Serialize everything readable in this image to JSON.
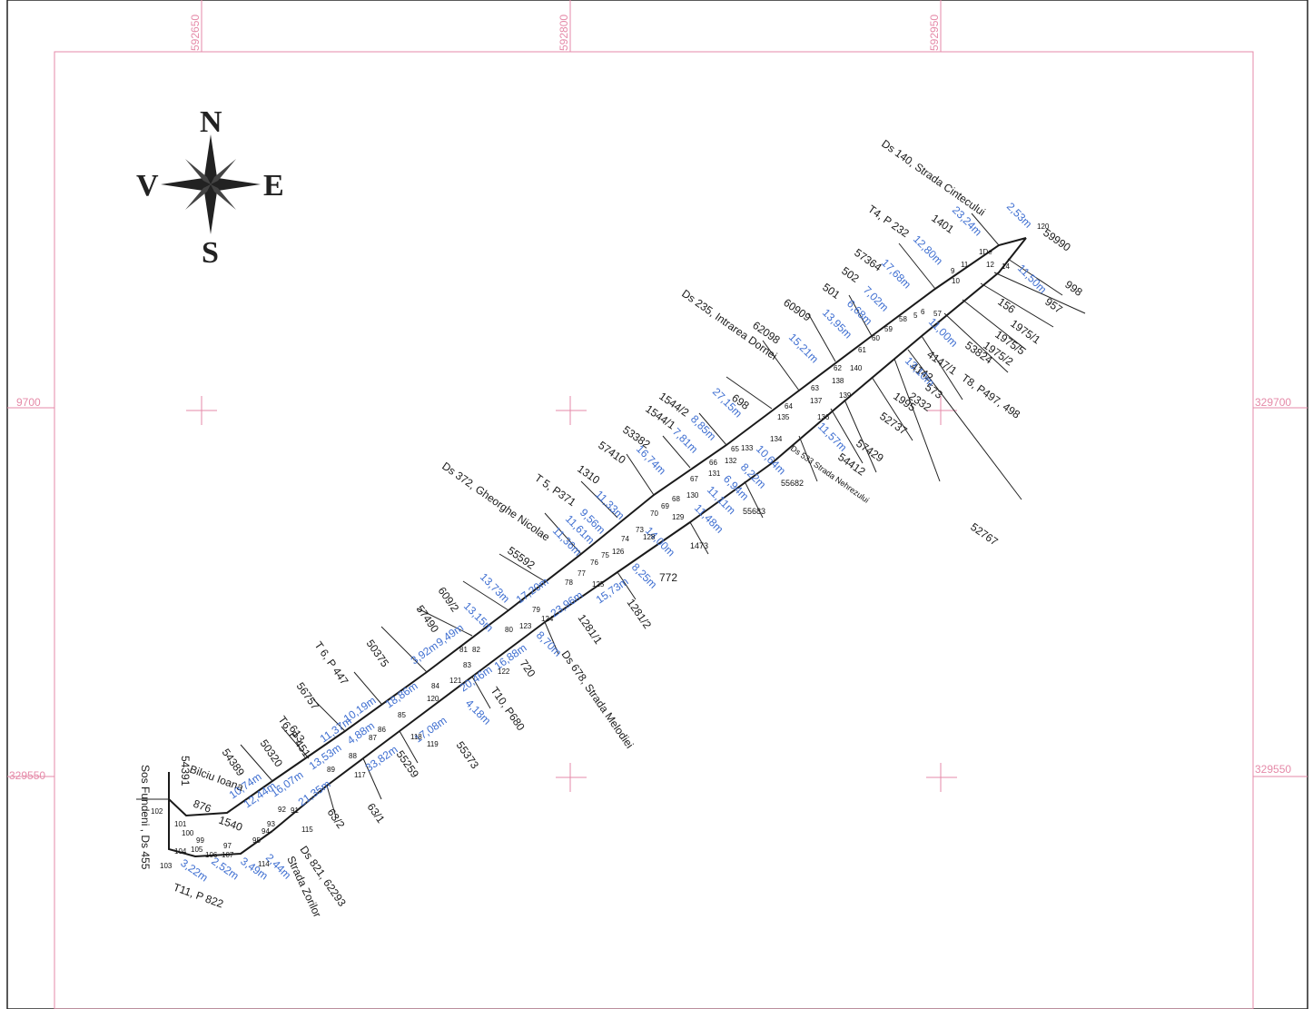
{
  "colors": {
    "grid": "#e58aa8",
    "dimension": "#3f6fd1",
    "boundary": "#1a1a1a",
    "label": "#1a1a1a"
  },
  "compass": {
    "north": "N",
    "south": "S",
    "east": "E",
    "west": "V"
  },
  "grid_labels": {
    "x1": "592650",
    "x2": "592800",
    "x3": "592950",
    "y_left_top": "9700",
    "y_right_top": "329700",
    "y_left_bottom": "329550",
    "y_right_bottom": "329550"
  },
  "road_labels": {
    "ds140": "Ds 140, Strada Cintecului",
    "ds235": "Ds 235, Intrarea Dornei",
    "ds372": "Ds 372, Gheorghe Nicolae",
    "ds533": "Ds 533 Strada Nehrezului",
    "ds678": "Ds 678, Strada Melodiei",
    "ds821": "Ds 821, 62293",
    "zorilor": "Strada Zorilor",
    "sos": "Sos Fundeni , Ds 455",
    "bicu": "Bilciu Ioana"
  },
  "parcel_labels": [
    {
      "id": "t4",
      "text": "T4, P 232"
    },
    {
      "id": "p1401",
      "text": "1401"
    },
    {
      "id": "p59990",
      "text": "59990"
    },
    {
      "id": "p998",
      "text": "998"
    },
    {
      "id": "p957",
      "text": "957"
    },
    {
      "id": "p156",
      "text": "156"
    },
    {
      "id": "p1975_1",
      "text": "1975/1"
    },
    {
      "id": "p1975_5",
      "text": "1975/5"
    },
    {
      "id": "p1975_2",
      "text": "1975/2"
    },
    {
      "id": "p53824",
      "text": "53824"
    },
    {
      "id": "t8",
      "text": "T8, P497, 498"
    },
    {
      "id": "p4147",
      "text": "4147/1"
    },
    {
      "id": "p4142",
      "text": "4142"
    },
    {
      "id": "p573",
      "text": "573"
    },
    {
      "id": "p2332",
      "text": "2332"
    },
    {
      "id": "p1995",
      "text": "1995"
    },
    {
      "id": "p52737",
      "text": "52737"
    },
    {
      "id": "p57429",
      "text": "57429"
    },
    {
      "id": "p54412",
      "text": "54412"
    },
    {
      "id": "p52767",
      "text": "52767"
    },
    {
      "id": "p57364",
      "text": "57364"
    },
    {
      "id": "p502",
      "text": "502"
    },
    {
      "id": "p501",
      "text": "501"
    },
    {
      "id": "p60909",
      "text": "60909"
    },
    {
      "id": "p62098",
      "text": "62098"
    },
    {
      "id": "p698",
      "text": "698"
    },
    {
      "id": "p1544_2",
      "text": "1544/2"
    },
    {
      "id": "p1544_1",
      "text": "1544/1"
    },
    {
      "id": "p53382",
      "text": "53382"
    },
    {
      "id": "p57410",
      "text": "57410"
    },
    {
      "id": "p1310",
      "text": "1310"
    },
    {
      "id": "t5",
      "text": "T 5, P371"
    },
    {
      "id": "p55592",
      "text": "55592"
    },
    {
      "id": "p55682",
      "text": "55682"
    },
    {
      "id": "p55683",
      "text": "55683"
    },
    {
      "id": "p1473",
      "text": "1473"
    },
    {
      "id": "p772",
      "text": "772"
    },
    {
      "id": "p1281_2",
      "text": "1281/2"
    },
    {
      "id": "p1281_1",
      "text": "1281/1"
    },
    {
      "id": "p720",
      "text": "720"
    },
    {
      "id": "t10",
      "text": "T10, P680"
    },
    {
      "id": "p609_2",
      "text": "609/2"
    },
    {
      "id": "p57490",
      "text": "57490"
    },
    {
      "id": "p50375",
      "text": "50375"
    },
    {
      "id": "t6a",
      "text": "T 6, P 447"
    },
    {
      "id": "p56757",
      "text": "56757"
    },
    {
      "id": "p613",
      "text": "613"
    },
    {
      "id": "t6b",
      "text": "T6, P 451"
    },
    {
      "id": "p50320",
      "text": "50320"
    },
    {
      "id": "p54389",
      "text": "54389"
    },
    {
      "id": "p54391",
      "text": "54391"
    },
    {
      "id": "p55373",
      "text": "55373"
    },
    {
      "id": "p55259",
      "text": "55259"
    },
    {
      "id": "p63_1",
      "text": "63/1"
    },
    {
      "id": "p63_2",
      "text": "63/2"
    },
    {
      "id": "p876",
      "text": "876"
    },
    {
      "id": "p1540",
      "text": "1540"
    },
    {
      "id": "t11",
      "text": "T11, P 822"
    }
  ],
  "dimension_labels": [
    {
      "id": "d1",
      "text": "2,53m"
    },
    {
      "id": "d2",
      "text": "23,24m"
    },
    {
      "id": "d3",
      "text": "11,50m"
    },
    {
      "id": "d4",
      "text": "12,80m"
    },
    {
      "id": "d5",
      "text": "17,68m"
    },
    {
      "id": "d6",
      "text": "7,02m"
    },
    {
      "id": "d7",
      "text": "6,68m"
    },
    {
      "id": "d8",
      "text": "13,95m"
    },
    {
      "id": "d9",
      "text": "15,21m"
    },
    {
      "id": "d10",
      "text": "11,00m"
    },
    {
      "id": "d11",
      "text": "13,10m"
    },
    {
      "id": "d12",
      "text": "27,15m"
    },
    {
      "id": "d13",
      "text": "8,85m"
    },
    {
      "id": "d14",
      "text": "7,81m"
    },
    {
      "id": "d15",
      "text": "16,74m"
    },
    {
      "id": "d16",
      "text": "10,64m"
    },
    {
      "id": "d17",
      "text": "8,22m"
    },
    {
      "id": "d18",
      "text": "6,94m"
    },
    {
      "id": "d19",
      "text": "11,57m"
    },
    {
      "id": "d20",
      "text": "11,11m"
    },
    {
      "id": "d21",
      "text": "11,48m"
    },
    {
      "id": "d22",
      "text": "14,00m"
    },
    {
      "id": "d23",
      "text": "11,33m"
    },
    {
      "id": "d24",
      "text": "9,56m"
    },
    {
      "id": "d25",
      "text": "11,61m"
    },
    {
      "id": "d26",
      "text": "11,36m"
    },
    {
      "id": "d27",
      "text": "17,20m"
    },
    {
      "id": "d28",
      "text": "23,96m"
    },
    {
      "id": "d29",
      "text": "15,73m"
    },
    {
      "id": "d30",
      "text": "8,25m"
    },
    {
      "id": "d31",
      "text": "13,73m"
    },
    {
      "id": "d32",
      "text": "13,15m"
    },
    {
      "id": "d33",
      "text": "9,49m"
    },
    {
      "id": "d34",
      "text": "3,92m"
    },
    {
      "id": "d35",
      "text": "16,88m"
    },
    {
      "id": "d36",
      "text": "8,70m"
    },
    {
      "id": "d37",
      "text": "20,46m"
    },
    {
      "id": "d38",
      "text": "18,86m"
    },
    {
      "id": "d39",
      "text": "10,19m"
    },
    {
      "id": "d40",
      "text": "11,37m"
    },
    {
      "id": "d41",
      "text": "4,88m"
    },
    {
      "id": "d42",
      "text": "17,08m"
    },
    {
      "id": "d43",
      "text": "4,18m"
    },
    {
      "id": "d44",
      "text": "13,53m"
    },
    {
      "id": "d45",
      "text": "33,82m"
    },
    {
      "id": "d46",
      "text": "16,07m"
    },
    {
      "id": "d47",
      "text": "21,35m"
    },
    {
      "id": "d48",
      "text": "12,44m"
    },
    {
      "id": "d49",
      "text": "10,74m"
    },
    {
      "id": "d50",
      "text": "3,49m"
    },
    {
      "id": "d51",
      "text": "2,44m"
    },
    {
      "id": "d52",
      "text": "2,52m"
    },
    {
      "id": "d53",
      "text": "3,22m"
    }
  ],
  "vertex_labels": [
    {
      "id": "v1",
      "text": "120"
    },
    {
      "id": "v2",
      "text": "1De"
    },
    {
      "id": "v3",
      "text": "14"
    },
    {
      "id": "v4",
      "text": "9"
    },
    {
      "id": "v5",
      "text": "10"
    },
    {
      "id": "v6",
      "text": "58"
    },
    {
      "id": "v7",
      "text": "59"
    },
    {
      "id": "v8",
      "text": "60"
    },
    {
      "id": "v9",
      "text": "61"
    },
    {
      "id": "v10",
      "text": "62"
    },
    {
      "id": "v11",
      "text": "63"
    },
    {
      "id": "v12",
      "text": "64"
    },
    {
      "id": "v13",
      "text": "65"
    },
    {
      "id": "v14",
      "text": "66"
    },
    {
      "id": "v15",
      "text": "67"
    },
    {
      "id": "v16",
      "text": "68"
    },
    {
      "id": "v17",
      "text": "69"
    },
    {
      "id": "v18",
      "text": "70"
    },
    {
      "id": "v19",
      "text": "73"
    },
    {
      "id": "v20",
      "text": "74"
    },
    {
      "id": "v21",
      "text": "75"
    },
    {
      "id": "v22",
      "text": "76"
    },
    {
      "id": "v23",
      "text": "77"
    },
    {
      "id": "v24",
      "text": "78"
    },
    {
      "id": "v25",
      "text": "79"
    },
    {
      "id": "v26",
      "text": "80"
    },
    {
      "id": "v27",
      "text": "81"
    },
    {
      "id": "v28",
      "text": "82"
    },
    {
      "id": "v29",
      "text": "83"
    },
    {
      "id": "v30",
      "text": "84"
    },
    {
      "id": "v31",
      "text": "85"
    },
    {
      "id": "v32",
      "text": "86"
    },
    {
      "id": "v33",
      "text": "87"
    },
    {
      "id": "v34",
      "text": "88"
    },
    {
      "id": "v35",
      "text": "89"
    },
    {
      "id": "v36",
      "text": "91"
    },
    {
      "id": "v37",
      "text": "92"
    },
    {
      "id": "v38",
      "text": "93"
    },
    {
      "id": "v39",
      "text": "94"
    },
    {
      "id": "v40",
      "text": "95"
    },
    {
      "id": "v41",
      "text": "97"
    },
    {
      "id": "v42",
      "text": "99"
    },
    {
      "id": "v43",
      "text": "100"
    },
    {
      "id": "v44",
      "text": "101"
    },
    {
      "id": "v45",
      "text": "102"
    },
    {
      "id": "v46",
      "text": "103"
    },
    {
      "id": "v47",
      "text": "104"
    },
    {
      "id": "v48",
      "text": "105"
    },
    {
      "id": "v49",
      "text": "106"
    },
    {
      "id": "v50",
      "text": "107"
    },
    {
      "id": "v51",
      "text": "114"
    },
    {
      "id": "v52",
      "text": "115"
    },
    {
      "id": "v53",
      "text": "117"
    },
    {
      "id": "v54",
      "text": "118"
    },
    {
      "id": "v55",
      "text": "119"
    },
    {
      "id": "v56",
      "text": "120"
    },
    {
      "id": "v57",
      "text": "121"
    },
    {
      "id": "v58",
      "text": "122"
    },
    {
      "id": "v59",
      "text": "123"
    },
    {
      "id": "v60",
      "text": "124"
    },
    {
      "id": "v61",
      "text": "125"
    },
    {
      "id": "v62",
      "text": "126"
    },
    {
      "id": "v63",
      "text": "128"
    },
    {
      "id": "v64",
      "text": "129"
    },
    {
      "id": "v65",
      "text": "130"
    },
    {
      "id": "v66",
      "text": "131"
    },
    {
      "id": "v67",
      "text": "132"
    },
    {
      "id": "v68",
      "text": "133"
    },
    {
      "id": "v69",
      "text": "134"
    },
    {
      "id": "v70",
      "text": "135"
    },
    {
      "id": "v71",
      "text": "136"
    },
    {
      "id": "v72",
      "text": "137"
    },
    {
      "id": "v73",
      "text": "138"
    },
    {
      "id": "v74",
      "text": "139"
    },
    {
      "id": "v75",
      "text": "140"
    },
    {
      "id": "v76",
      "text": "57"
    },
    {
      "id": "v77",
      "text": "6"
    },
    {
      "id": "v78",
      "text": "5"
    },
    {
      "id": "v79",
      "text": "11"
    },
    {
      "id": "v80",
      "text": "12"
    }
  ]
}
